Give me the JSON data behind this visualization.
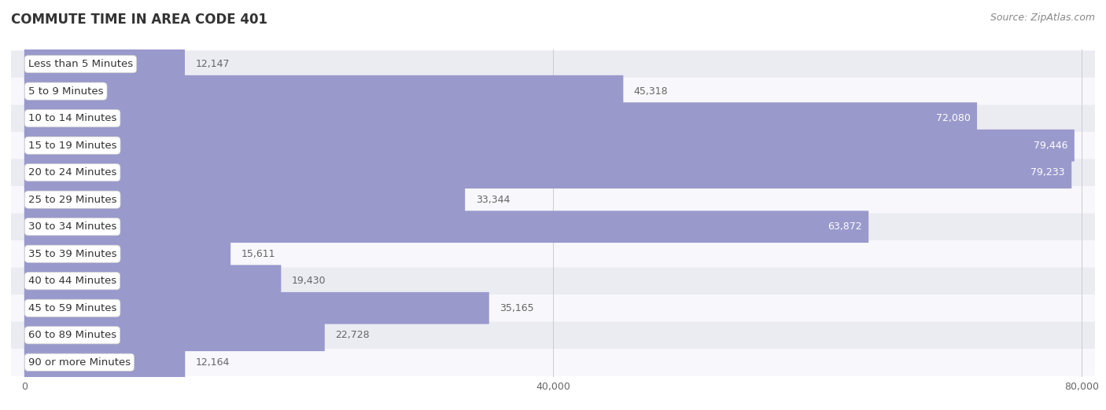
{
  "title": "COMMUTE TIME IN AREA CODE 401",
  "source": "Source: ZipAtlas.com",
  "categories": [
    "Less than 5 Minutes",
    "5 to 9 Minutes",
    "10 to 14 Minutes",
    "15 to 19 Minutes",
    "20 to 24 Minutes",
    "25 to 29 Minutes",
    "30 to 34 Minutes",
    "35 to 39 Minutes",
    "40 to 44 Minutes",
    "45 to 59 Minutes",
    "60 to 89 Minutes",
    "90 or more Minutes"
  ],
  "values": [
    12147,
    45318,
    72080,
    79446,
    79233,
    33344,
    63872,
    15611,
    19430,
    35165,
    22728,
    12164
  ],
  "bar_color": "#9999cc",
  "label_color_inside": "#ffffff",
  "label_color_outside": "#666666",
  "cat_label_color": "#333333",
  "background_color": "#ffffff",
  "row_bg_even": "#ebebf2",
  "row_bg_odd": "#f7f7fc",
  "xlim": [
    0,
    80000
  ],
  "xticks": [
    0,
    40000,
    80000
  ],
  "xtick_labels": [
    "0",
    "40,000",
    "80,000"
  ],
  "title_fontsize": 12,
  "label_fontsize": 9.5,
  "value_fontsize": 9,
  "source_fontsize": 9,
  "threshold_inside": 55000
}
